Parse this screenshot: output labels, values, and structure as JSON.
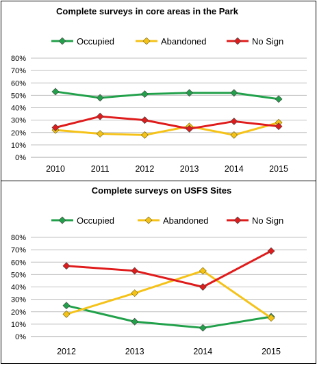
{
  "chart_data": [
    {
      "type": "line",
      "title": "Complete surveys in core areas in the Park",
      "categories": [
        "2010",
        "2011",
        "2012",
        "2013",
        "2014",
        "2015"
      ],
      "ylim": [
        0,
        80
      ],
      "ytick_labels": [
        "0%",
        "10%",
        "20%",
        "30%",
        "40%",
        "50%",
        "60%",
        "70%",
        "80%"
      ],
      "grid": true,
      "legend_position": "top",
      "series": [
        {
          "name": "Occupied",
          "color": "#22a14b",
          "values": [
            53,
            48,
            51,
            52,
            52,
            47
          ]
        },
        {
          "name": "Abandoned",
          "color": "#f5c218",
          "values": [
            22,
            19,
            18,
            25,
            18,
            28
          ]
        },
        {
          "name": "No Sign",
          "color": "#e01b1b",
          "values": [
            24,
            33,
            30,
            23,
            29,
            25
          ]
        }
      ]
    },
    {
      "type": "line",
      "title": "Complete surveys on USFS Sites",
      "categories": [
        "2012",
        "2013",
        "2014",
        "2015"
      ],
      "ylim": [
        0,
        80
      ],
      "ytick_labels": [
        "0%",
        "10%",
        "20%",
        "30%",
        "40%",
        "50%",
        "60%",
        "70%",
        "80%"
      ],
      "grid": true,
      "legend_position": "top",
      "series": [
        {
          "name": "Occupied",
          "color": "#22a14b",
          "values": [
            25,
            12,
            7,
            16
          ]
        },
        {
          "name": "Abandoned",
          "color": "#f5c218",
          "values": [
            18,
            35,
            53,
            15
          ]
        },
        {
          "name": "No Sign",
          "color": "#e01b1b",
          "values": [
            57,
            53,
            40,
            69
          ]
        }
      ]
    }
  ]
}
